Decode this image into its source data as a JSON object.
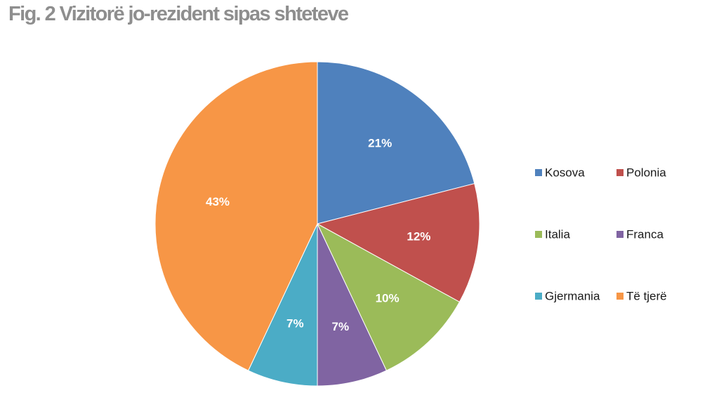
{
  "chart_data": {
    "type": "pie",
    "title": "Fig. 2 Vizitorë jo-rezident sipas shteteve",
    "categories": [
      "Kosova",
      "Polonia",
      "Italia",
      "Franca",
      "Gjermania",
      "Të tjerë"
    ],
    "values": [
      21,
      12,
      10,
      7,
      7,
      43
    ],
    "data_labels": [
      "21%",
      "12%",
      "10%",
      "7%",
      "7%",
      "43%"
    ],
    "colors": [
      "#4f81bd",
      "#c0504d",
      "#9bbb59",
      "#8064a2",
      "#4bacc6",
      "#f79646"
    ],
    "start_angle": "12 o'clock",
    "direction": "clockwise",
    "legend_position": "right"
  }
}
